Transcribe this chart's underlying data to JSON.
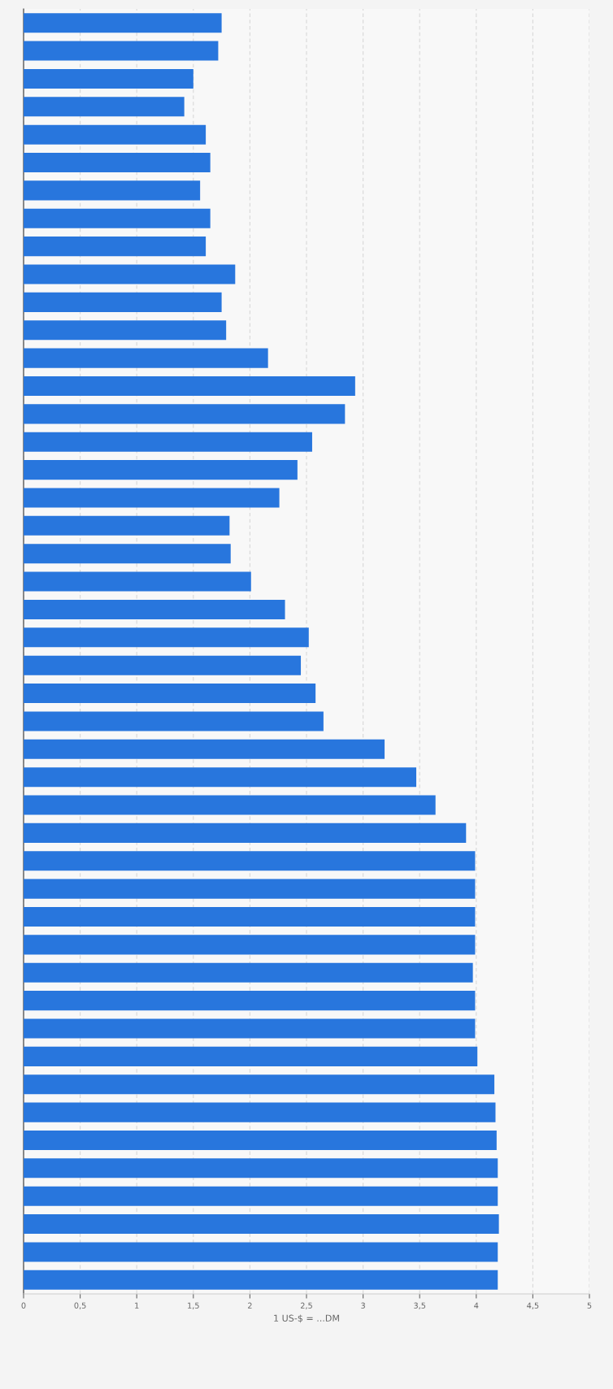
{
  "chart_data": {
    "type": "bar",
    "orientation": "horizontal",
    "xlabel": "1 US-$ = ...DM",
    "categories": [
      null,
      null,
      null,
      null,
      null,
      null,
      null,
      null,
      null,
      null,
      null,
      null,
      null,
      null,
      null,
      null,
      null,
      null,
      null,
      null,
      null,
      null,
      null,
      null,
      null,
      null,
      null,
      null,
      null,
      null,
      null,
      null,
      null,
      null,
      null,
      null,
      null,
      null,
      null,
      null,
      null,
      null,
      null,
      null,
      null,
      null
    ],
    "values": [
      1.75,
      1.72,
      1.5,
      1.42,
      1.61,
      1.65,
      1.56,
      1.65,
      1.61,
      1.87,
      1.75,
      1.79,
      2.16,
      2.93,
      2.84,
      2.55,
      2.42,
      2.26,
      1.82,
      1.83,
      2.01,
      2.31,
      2.52,
      2.45,
      2.58,
      2.65,
      3.19,
      3.47,
      3.64,
      3.91,
      3.99,
      3.99,
      3.99,
      3.99,
      3.97,
      3.99,
      3.99,
      4.01,
      4.16,
      4.17,
      4.18,
      4.19,
      4.19,
      4.2,
      4.19,
      4.19
    ],
    "color": "#2876dd",
    "xlim": [
      0,
      5
    ],
    "xticks": [
      0,
      {
        "value": 0.5,
        "label": "0,5"
      },
      1,
      {
        "value": 1.5,
        "label": "1,5"
      },
      2,
      {
        "value": 2.5,
        "label": "2,5"
      },
      3,
      {
        "value": 3.5,
        "label": "3,5"
      },
      4,
      {
        "value": 4.5,
        "label": "4,5"
      },
      5
    ],
    "grid": "x",
    "tick_labels": "x"
  }
}
